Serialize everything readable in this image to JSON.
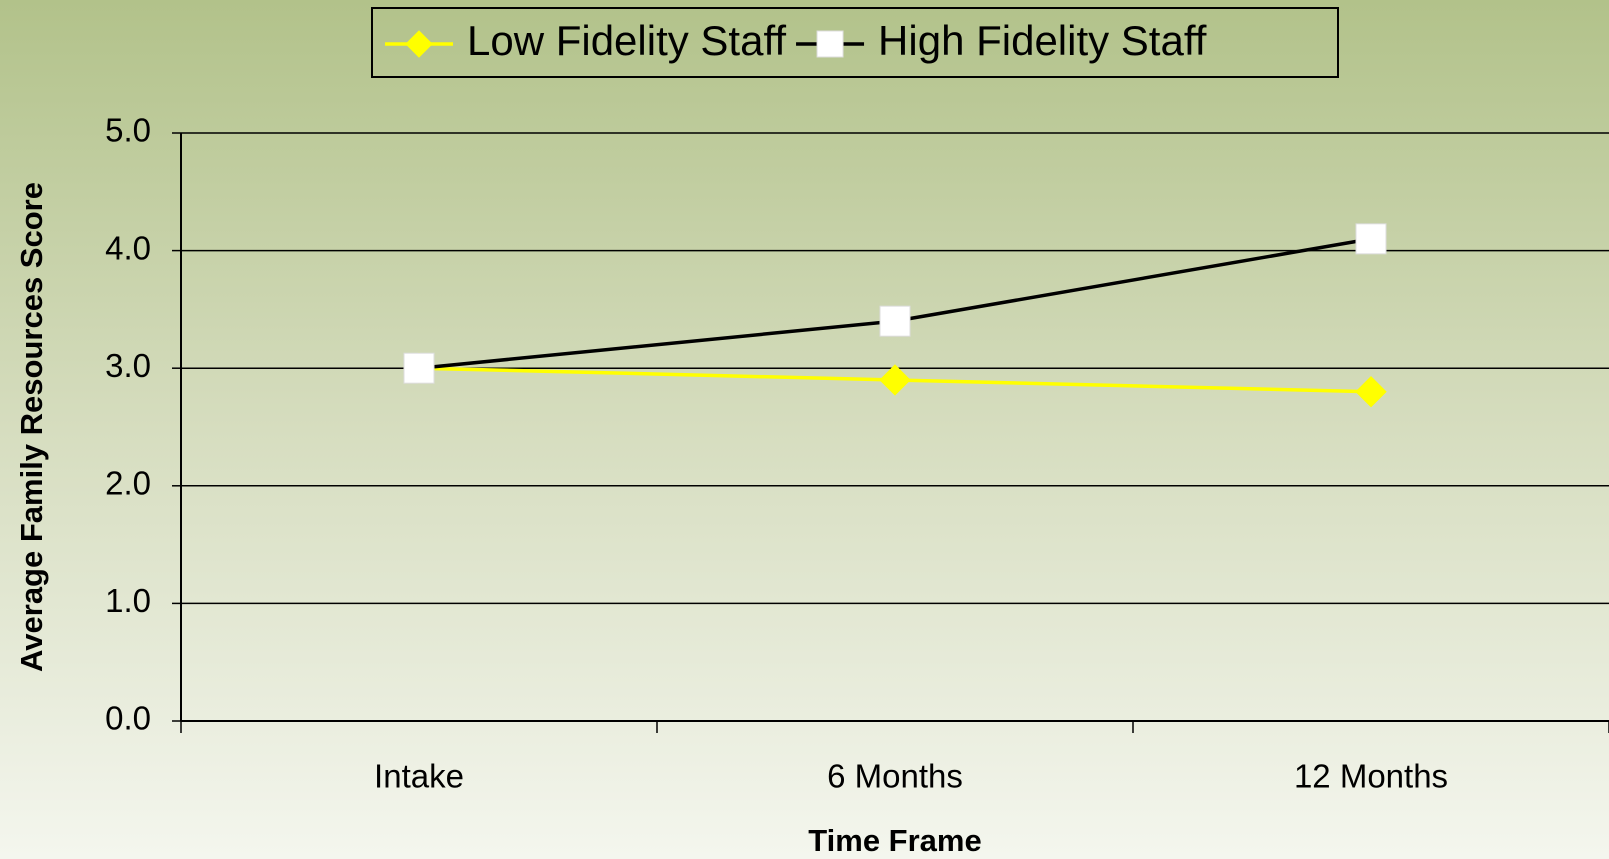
{
  "chart_data": {
    "type": "line",
    "y_label": "Average Family Resources Score",
    "x_label": "Time Frame",
    "categories": [
      "Intake",
      "6 Months",
      "12 Months"
    ],
    "series": [
      {
        "name": "Low Fidelity Staff",
        "color": "#ffff00",
        "marker": "diamond",
        "marker_color": "#ffff00",
        "values": [
          3.0,
          2.9,
          2.8
        ]
      },
      {
        "name": "High Fidelity Staff",
        "color": "#000000",
        "marker": "square",
        "marker_color": "#ffffff",
        "values": [
          3.0,
          3.4,
          4.1
        ]
      }
    ],
    "ylim": [
      0,
      5
    ],
    "yticks": [
      {
        "value": 0,
        "label": "0.0"
      },
      {
        "value": 1,
        "label": "1.0"
      },
      {
        "value": 2,
        "label": "2.0"
      },
      {
        "value": 3,
        "label": "3.0"
      },
      {
        "value": 4,
        "label": "4.0"
      },
      {
        "value": 5,
        "label": "5.0"
      }
    ],
    "grid": true,
    "legend": "top"
  }
}
